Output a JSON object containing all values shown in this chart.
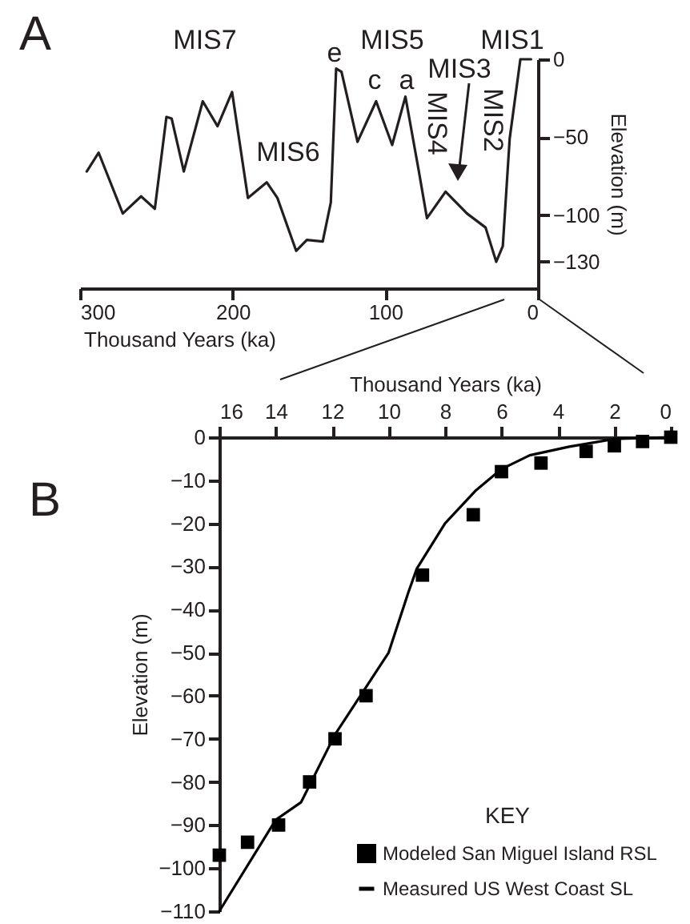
{
  "chart_data": [
    {
      "type": "line",
      "xlabel": "Thousand Years (ka)",
      "ylabel": "Elevation (m)",
      "color": "#231f20",
      "x": [
        295.6,
        287.8,
        272,
        260,
        251,
        243.4,
        240,
        232,
        219.6,
        209.9,
        200.4,
        190,
        177.7,
        170.7,
        158.4,
        151.4,
        141,
        135.7,
        132.2,
        128.7,
        118.2,
        106,
        95.5,
        86.8,
        78,
        72.7,
        60.5,
        46.5,
        34.3,
        27.3,
        23,
        18.5,
        11.5,
        4.5
      ],
      "values": [
        -72,
        -60,
        -99,
        -88,
        -96,
        -37,
        -38,
        -72,
        -27,
        -43,
        -21,
        -89,
        -79,
        -89,
        -123,
        -116,
        -117,
        -92,
        -6,
        -8,
        -53,
        -27,
        -55,
        -24,
        -72,
        -102,
        -85,
        -99,
        -108,
        -130,
        -120,
        -51,
        0,
        0
      ],
      "xlim": [
        300,
        0
      ],
      "xticks": [
        300,
        200,
        100,
        0
      ],
      "ylim": [
        -147,
        0
      ],
      "yticks": [
        0,
        -50,
        -100,
        -130
      ],
      "grid": false,
      "annotations": [
        "A",
        "MIS7",
        "MIS6",
        "e",
        "MIS5",
        "c",
        "a",
        "MIS3",
        "MIS4",
        "MIS2",
        "MIS1"
      ]
    },
    {
      "type": "line",
      "xlabel": "Thousand Years (ka)",
      "ylabel": "Elevation (m)",
      "legend_title": "KEY",
      "legend": "bottom right",
      "grid": false,
      "xlim": [
        16,
        0
      ],
      "xticks": [
        16,
        14,
        12,
        10,
        8,
        6,
        4,
        2,
        0
      ],
      "ylim": [
        -110,
        0
      ],
      "yticks": [
        0,
        -10,
        -20,
        -30,
        -40,
        -50,
        -60,
        -70,
        -80,
        -90,
        -100,
        -110
      ],
      "annotations": [
        "B"
      ],
      "series": [
        {
          "name": "Modeled San Miguel Island RSL",
          "type": "scatter",
          "marker": "square",
          "color": "#000000",
          "x": [
            0,
            1,
            2,
            3,
            4.6,
            6,
            7,
            8.8,
            10.8,
            11.9,
            12.8,
            13.9,
            15,
            16
          ],
          "values": [
            0,
            -1,
            -2,
            -3.3,
            -6,
            -8,
            -18,
            -32,
            -60,
            -70,
            -80,
            -90,
            -94,
            -97
          ]
        },
        {
          "name": "Measured US West Coast SL",
          "type": "line",
          "color": "#000000",
          "x": [
            0,
            2,
            3.6,
            5,
            6,
            6.9,
            8,
            9,
            9.3,
            10,
            11.9,
            13.1,
            14,
            16
          ],
          "values": [
            0,
            -0.4,
            -2.2,
            -4.2,
            -7.4,
            -12.3,
            -20,
            -30.5,
            -36,
            -50,
            -69,
            -84.7,
            -88.8,
            -110
          ]
        }
      ]
    }
  ]
}
